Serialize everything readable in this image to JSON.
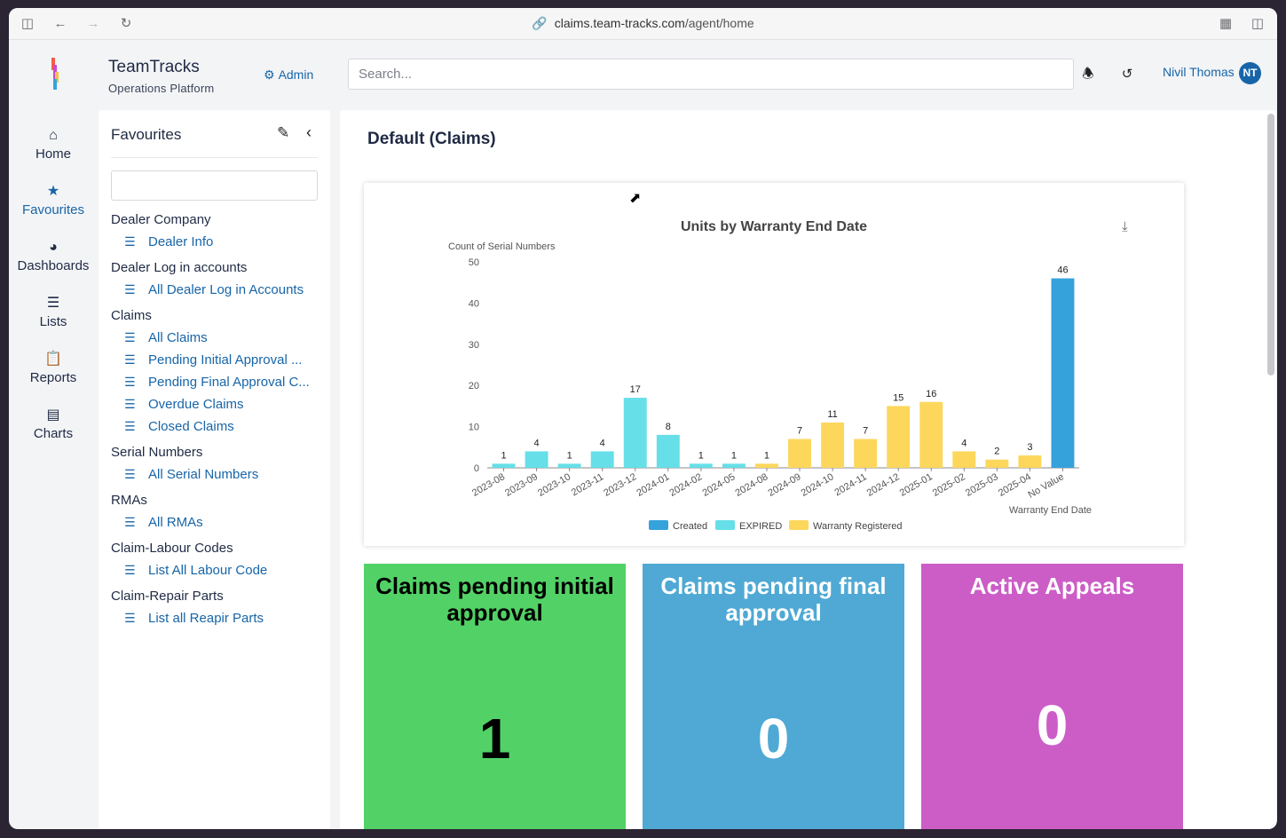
{
  "browser": {
    "url_host": "claims.team-tracks.com",
    "url_path": "/agent/home"
  },
  "header": {
    "brand_title": "TeamTracks",
    "brand_subtitle": "Operations Platform",
    "admin_label": "Admin",
    "search_placeholder": "Search...",
    "user_name": "Nivil Thomas",
    "user_initials": "NT"
  },
  "leftnav": {
    "items": [
      {
        "label": "Home",
        "icon": "home-icon"
      },
      {
        "label": "Favourites",
        "icon": "star-icon"
      },
      {
        "label": "Dashboards",
        "icon": "dashboard-icon"
      },
      {
        "label": "Lists",
        "icon": "list-icon"
      },
      {
        "label": "Reports",
        "icon": "clipboard-icon"
      },
      {
        "label": "Charts",
        "icon": "chart-icon"
      }
    ]
  },
  "favourites": {
    "title": "Favourites",
    "groups": [
      {
        "title": "Dealer Company",
        "links": [
          "Dealer Info"
        ]
      },
      {
        "title": "Dealer Log in accounts",
        "links": [
          "All Dealer Log in Accounts"
        ]
      },
      {
        "title": "Claims",
        "links": [
          "All Claims",
          "Pending Initial Approval ...",
          "Pending Final Approval C...",
          "Overdue Claims",
          "Closed Claims"
        ]
      },
      {
        "title": "Serial Numbers",
        "links": [
          "All Serial Numbers"
        ]
      },
      {
        "title": "RMAs",
        "links": [
          "All RMAs"
        ]
      },
      {
        "title": "Claim-Labour Codes",
        "links": [
          "List All Labour Code"
        ]
      },
      {
        "title": "Claim-Repair Parts",
        "links": [
          "List all Reapir Parts"
        ]
      }
    ]
  },
  "main": {
    "page_title": "Default (Claims)"
  },
  "chart_data": {
    "type": "bar",
    "title": "Units by Warranty End Date",
    "ylabel": "Count of Serial Numbers",
    "xlabel": "Warranty End Date",
    "ylim": [
      0,
      50
    ],
    "yticks": [
      0,
      10,
      20,
      30,
      40,
      50
    ],
    "categories": [
      "2023-08",
      "2023-09",
      "2023-10",
      "2023-11",
      "2023-12",
      "2024-01",
      "2024-02",
      "2024-05",
      "2024-08",
      "2024-09",
      "2024-10",
      "2024-11",
      "2024-12",
      "2025-01",
      "2025-02",
      "2025-03",
      "2025-04",
      "No Value"
    ],
    "values": [
      1,
      4,
      1,
      4,
      17,
      8,
      1,
      1,
      1,
      7,
      11,
      7,
      15,
      16,
      4,
      2,
      3,
      46
    ],
    "bar_series": [
      "EXPIRED",
      "EXPIRED",
      "EXPIRED",
      "EXPIRED",
      "EXPIRED",
      "EXPIRED",
      "EXPIRED",
      "EXPIRED",
      "Warranty Registered",
      "Warranty Registered",
      "Warranty Registered",
      "Warranty Registered",
      "Warranty Registered",
      "Warranty Registered",
      "Warranty Registered",
      "Warranty Registered",
      "Warranty Registered",
      "Created"
    ],
    "legend": [
      {
        "name": "Created",
        "color": "#36a2dc"
      },
      {
        "name": "EXPIRED",
        "color": "#66dfe8"
      },
      {
        "name": "Warranty Registered",
        "color": "#fcd75c"
      }
    ],
    "legend_position": "bottom"
  },
  "tiles": [
    {
      "title": "Claims pending initial approval",
      "value": "1",
      "bg": "#52d266",
      "fg": "#000000"
    },
    {
      "title": "Claims pending final approval",
      "value": "0",
      "bg": "#4fa9d4",
      "fg": "#ffffff"
    },
    {
      "title": "Active Appeals",
      "value": "0",
      "bg": "#cc5dc6",
      "fg": "#ffffff"
    }
  ]
}
